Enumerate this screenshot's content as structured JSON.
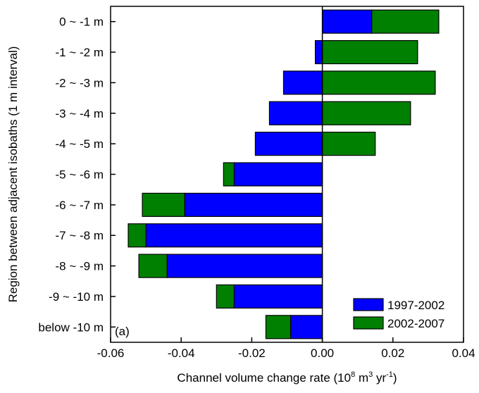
{
  "chart_data": {
    "type": "bar",
    "orientation": "horizontal",
    "stacking": "stacked",
    "panel_label": "(a)",
    "ylabel": "Region between adjacent isobaths (1 m interval)",
    "xlabel": "Channel volume change rate (10⁸ m³ yr⁻¹)",
    "xlabel_parts": {
      "prefix": "Channel volume change rate (10",
      "exp1": "8",
      "mid1": " m",
      "exp2": "3",
      "mid2": " yr",
      "exp3": "-1",
      "suffix": ")"
    },
    "xlim": [
      -0.06,
      0.04
    ],
    "xticks": [
      -0.06,
      -0.04,
      -0.02,
      0.0,
      0.02,
      0.04
    ],
    "xtick_labels": [
      "-0.06",
      "-0.04",
      "-0.02",
      "0.00",
      "0.02",
      "0.04"
    ],
    "grid": false,
    "legend_position": "bottom-right",
    "categories": [
      "0 ~ -1 m",
      "-1 ~ -2 m",
      "-2 ~ -3 m",
      "-3 ~ -4 m",
      "-4 ~ -5 m",
      "-5 ~ -6 m",
      "-6 ~ -7 m",
      "-7 ~ -8 m",
      "-8 ~ -9 m",
      "-9 ~ -10 m",
      "below -10 m"
    ],
    "series": [
      {
        "name": "1997-2002",
        "color": "#0000ff",
        "values": [
          0.014,
          -0.002,
          -0.011,
          -0.015,
          -0.019,
          -0.025,
          -0.039,
          -0.05,
          -0.044,
          -0.025,
          -0.009
        ]
      },
      {
        "name": "2002-2007",
        "color": "#008000",
        "values": [
          0.019,
          0.027,
          0.032,
          0.025,
          0.015,
          -0.003,
          -0.012,
          -0.005,
          -0.008,
          -0.005,
          -0.007
        ]
      }
    ]
  }
}
